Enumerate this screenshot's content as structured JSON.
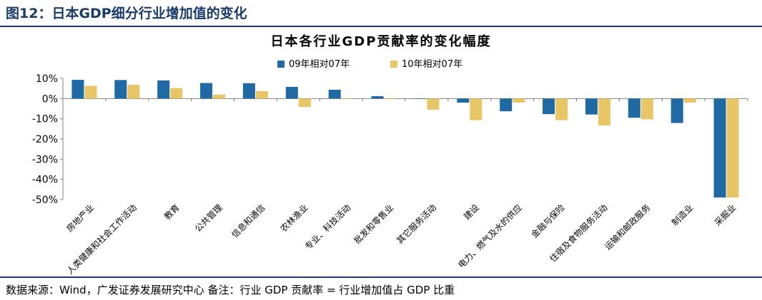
{
  "figure_label": "图12：日本GDP细分行业增加值的变化",
  "source_note": "数据来源：Wind，广发证券发展研究中心   备注：行业 GDP 贡献率 = 行业增加值占 GDP 比重",
  "colors": {
    "series_09": "#1f6aa5",
    "series_10": "#e8c565",
    "rule": "#1f3864",
    "axis": "#808080"
  },
  "chart_data": {
    "type": "bar",
    "title": "日本各行业GDP贡献率的变化幅度",
    "xlabel": "",
    "ylabel": "",
    "ylim": [
      -0.5,
      0.1
    ],
    "yticks": [
      0.1,
      0,
      -0.1,
      -0.2,
      -0.3,
      -0.4,
      -0.5
    ],
    "ytick_labels": [
      "10%",
      "0%",
      "-10%",
      "-20%",
      "-30%",
      "-40%",
      "-50%"
    ],
    "legend_position": "top-center",
    "grid": false,
    "categories": [
      "房地产业",
      "人类健康和社会工作活动",
      "教育",
      "公共管理",
      "信息和通信",
      "农林渔业",
      "专业、科技活动",
      "批发和零售业",
      "其它服务活动",
      "建设",
      "电力、燃气及水的供应",
      "金融与保险",
      "住宿及食物服务活动",
      "运输和邮政服务",
      "制造业",
      "采掘业"
    ],
    "series": [
      {
        "name": "09年相对07年",
        "values": [
          0.093,
          0.092,
          0.09,
          0.077,
          0.076,
          0.058,
          0.044,
          0.012,
          -0.001,
          -0.02,
          -0.063,
          -0.077,
          -0.079,
          -0.095,
          -0.121,
          -0.49
        ]
      },
      {
        "name": "10年相对07年",
        "values": [
          0.063,
          0.068,
          0.052,
          0.02,
          0.037,
          -0.042,
          -0.002,
          0.0,
          -0.055,
          -0.107,
          -0.02,
          -0.107,
          -0.133,
          -0.103,
          -0.02,
          -0.49
        ]
      }
    ]
  }
}
